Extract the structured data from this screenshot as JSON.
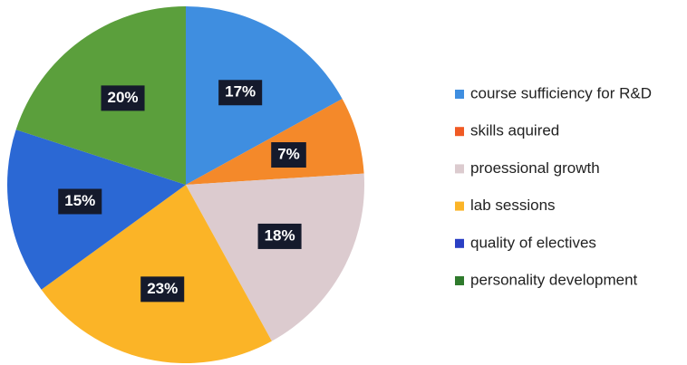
{
  "chart_data": {
    "type": "pie",
    "categories": [
      "course sufficiency for R&D",
      "skills aquired",
      "proessional growth",
      "lab sessions",
      "quality of electives",
      "personality development"
    ],
    "values": [
      17,
      7,
      18,
      23,
      15,
      20
    ],
    "value_labels": [
      "17%",
      "7%",
      "18%",
      "23%",
      "15%",
      "20%"
    ],
    "colors": [
      "#3f8ee0",
      "#f4892a",
      "#dccbcf",
      "#fbb427",
      "#2b68d4",
      "#5b9f3c"
    ],
    "legend_colors": [
      "#3f8ee0",
      "#f05a24",
      "#dccbcf",
      "#fbb427",
      "#2a3fc4",
      "#2f7a2c"
    ],
    "legend": "right"
  }
}
